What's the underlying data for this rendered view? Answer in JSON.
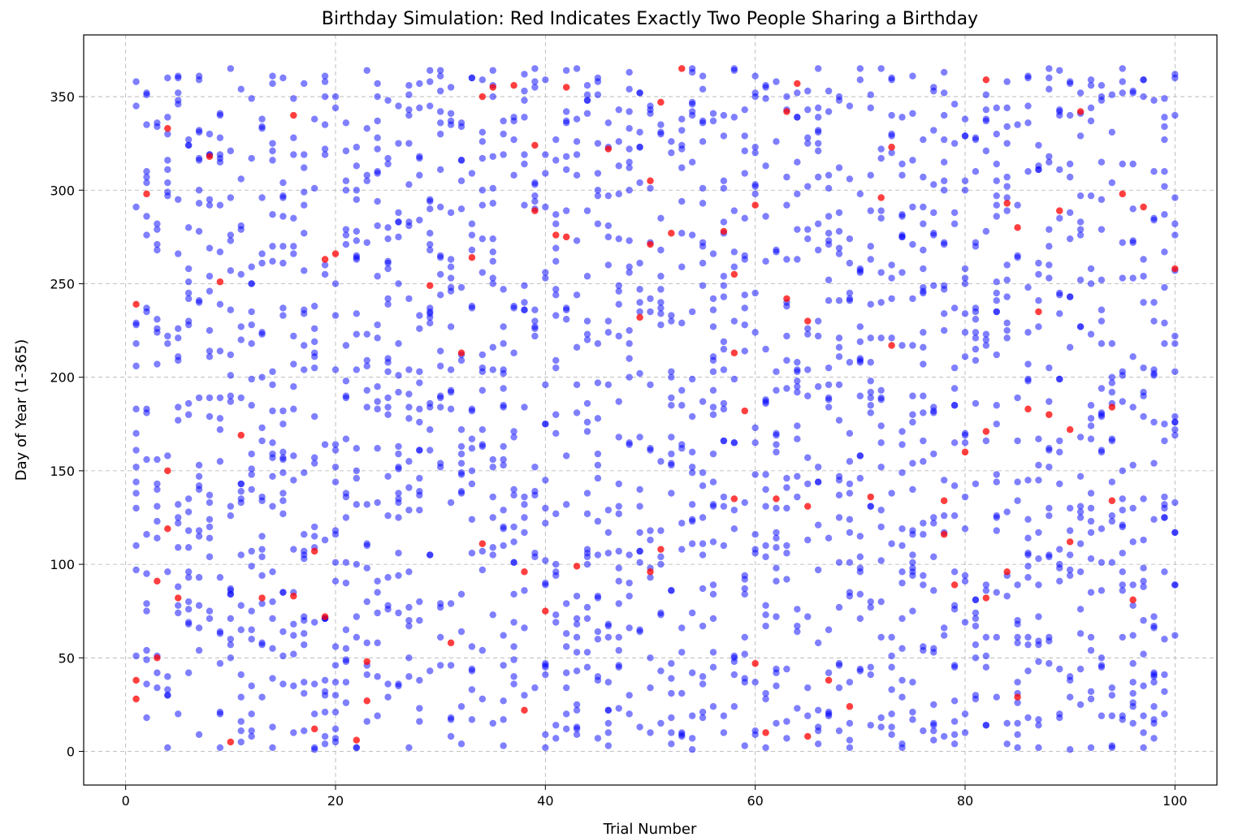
{
  "chart_data": {
    "type": "scatter",
    "title": "Birthday Simulation: Red Indicates Exactly Two People Sharing a Birthday",
    "xlabel": "Trial Number",
    "ylabel": "Day of Year (1-365)",
    "xlim": [
      -4,
      104
    ],
    "ylim": [
      -18,
      383
    ],
    "xticks": [
      0,
      20,
      40,
      60,
      80,
      100
    ],
    "yticks": [
      0,
      50,
      100,
      150,
      200,
      250,
      300,
      350
    ],
    "grid": true,
    "colors": {
      "unique": "#0000ff",
      "shared_pair": "#ff0000",
      "grid": "#b0b0b0"
    },
    "opacity": 0.5,
    "people_per_trial": 23,
    "trials": 100,
    "shared_pair_points": [
      [
        1,
        239
      ],
      [
        1,
        38
      ],
      [
        1,
        28
      ],
      [
        2,
        298
      ],
      [
        3,
        91
      ],
      [
        3,
        50
      ],
      [
        4,
        333
      ],
      [
        4,
        150
      ],
      [
        4,
        119
      ],
      [
        5,
        82
      ],
      [
        8,
        318
      ],
      [
        9,
        251
      ],
      [
        10,
        5
      ],
      [
        11,
        169
      ],
      [
        13,
        82
      ],
      [
        16,
        340
      ],
      [
        16,
        83
      ],
      [
        18,
        107
      ],
      [
        18,
        12
      ],
      [
        19,
        263
      ],
      [
        19,
        72
      ],
      [
        20,
        266
      ],
      [
        22,
        6
      ],
      [
        23,
        48
      ],
      [
        23,
        27
      ],
      [
        29,
        249
      ],
      [
        31,
        58
      ],
      [
        32,
        213
      ],
      [
        33,
        264
      ],
      [
        34,
        350
      ],
      [
        34,
        111
      ],
      [
        35,
        355
      ],
      [
        37,
        356
      ],
      [
        38,
        96
      ],
      [
        38,
        22
      ],
      [
        39,
        324
      ],
      [
        39,
        289
      ],
      [
        40,
        75
      ],
      [
        41,
        276
      ],
      [
        42,
        355
      ],
      [
        42,
        275
      ],
      [
        43,
        99
      ],
      [
        46,
        322
      ],
      [
        49,
        232
      ],
      [
        50,
        305
      ],
      [
        50,
        271
      ],
      [
        50,
        96
      ],
      [
        51,
        347
      ],
      [
        51,
        108
      ],
      [
        52,
        277
      ],
      [
        53,
        365
      ],
      [
        57,
        278
      ],
      [
        58,
        255
      ],
      [
        58,
        213
      ],
      [
        58,
        135
      ],
      [
        59,
        182
      ],
      [
        60,
        292
      ],
      [
        60,
        47
      ],
      [
        61,
        10
      ],
      [
        62,
        135
      ],
      [
        63,
        342
      ],
      [
        63,
        242
      ],
      [
        64,
        357
      ],
      [
        65,
        230
      ],
      [
        65,
        131
      ],
      [
        65,
        8
      ],
      [
        67,
        38
      ],
      [
        69,
        24
      ],
      [
        71,
        136
      ],
      [
        72,
        296
      ],
      [
        73,
        323
      ],
      [
        73,
        217
      ],
      [
        78,
        134
      ],
      [
        78,
        116
      ],
      [
        79,
        89
      ],
      [
        80,
        160
      ],
      [
        82,
        359
      ],
      [
        82,
        171
      ],
      [
        82,
        82
      ],
      [
        84,
        293
      ],
      [
        84,
        96
      ],
      [
        85,
        280
      ],
      [
        85,
        29
      ],
      [
        86,
        183
      ],
      [
        87,
        235
      ],
      [
        88,
        180
      ],
      [
        89,
        289
      ],
      [
        90,
        172
      ],
      [
        90,
        112
      ],
      [
        91,
        342
      ],
      [
        94,
        184
      ],
      [
        94,
        134
      ],
      [
        95,
        298
      ],
      [
        96,
        81
      ],
      [
        97,
        291
      ],
      [
        100,
        258
      ]
    ]
  }
}
